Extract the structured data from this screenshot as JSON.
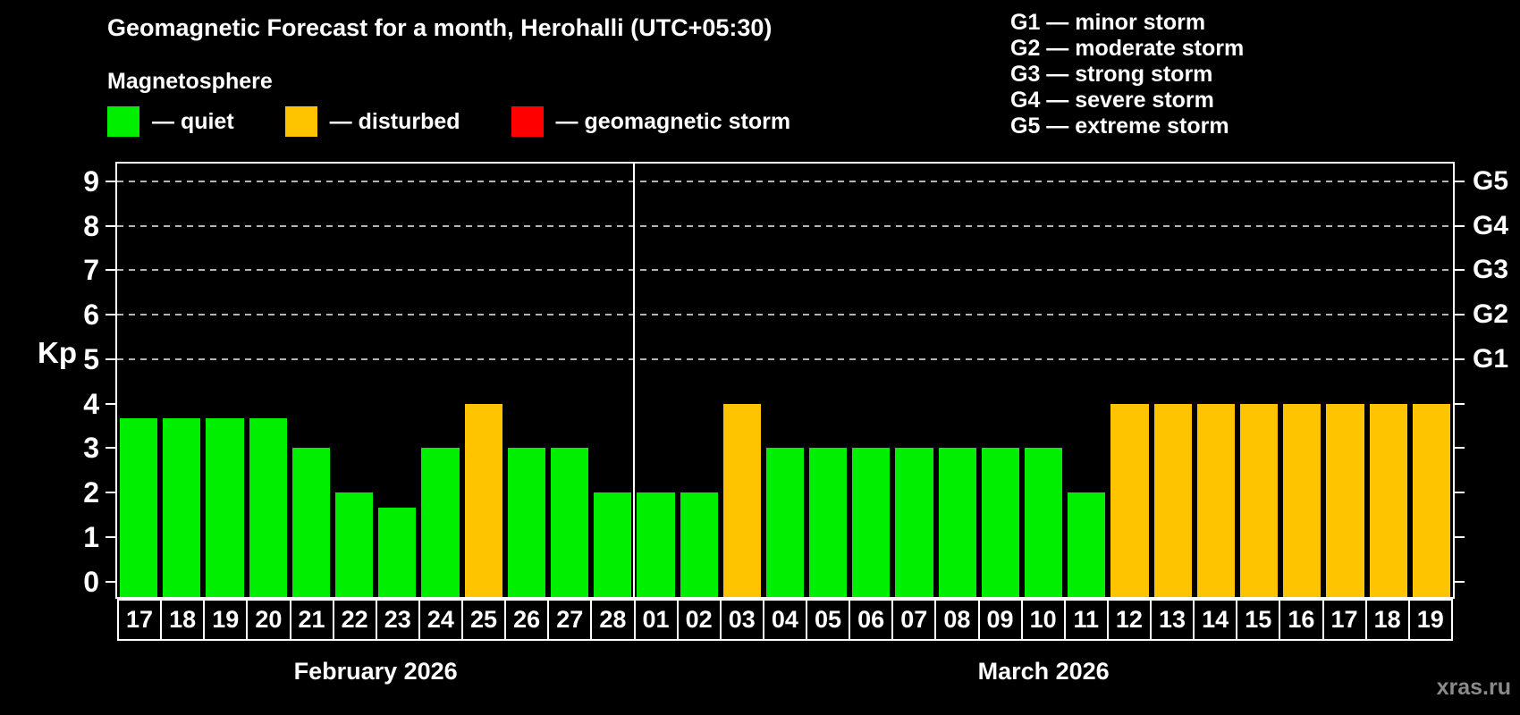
{
  "header": {
    "title": "Geomagnetic Forecast for a month, Herohalli (UTC+05:30)",
    "subtitle": "Magnetosphere"
  },
  "legend": {
    "quiet": "— quiet",
    "disturbed": "— disturbed",
    "storm": "— geomagnetic storm"
  },
  "g_scale_legend": [
    "G1 — minor storm",
    "G2 — moderate storm",
    "G3 — strong storm",
    "G4 — severe storm",
    "G5 — extreme storm"
  ],
  "watermark": "xras.ru",
  "colors": {
    "quiet": "#00EE00",
    "disturbed": "#FFC400",
    "storm": "#FF0000",
    "axis": "#FFFFFF",
    "grid": "#B4B4B4"
  },
  "chart_data": {
    "type": "bar",
    "title": "Geomagnetic Forecast for a month, Herohalli (UTC+05:30)",
    "xlabel": "",
    "ylabel": "Kp",
    "ylim": [
      -0.35,
      9.4
    ],
    "yticks": [
      0,
      1,
      2,
      3,
      4,
      5,
      6,
      7,
      8,
      9
    ],
    "gridlines_at": [
      5,
      6,
      7,
      8,
      9
    ],
    "grid": true,
    "right_axis": [
      {
        "kp": 5,
        "label": "G1"
      },
      {
        "kp": 6,
        "label": "G2"
      },
      {
        "kp": 7,
        "label": "G3"
      },
      {
        "kp": 8,
        "label": "G4"
      },
      {
        "kp": 9,
        "label": "G5"
      }
    ],
    "sections": [
      {
        "label": "February 2026",
        "days": [
          {
            "day": "17",
            "kp": 3.67,
            "status": "quiet"
          },
          {
            "day": "18",
            "kp": 3.67,
            "status": "quiet"
          },
          {
            "day": "19",
            "kp": 3.67,
            "status": "quiet"
          },
          {
            "day": "20",
            "kp": 3.67,
            "status": "quiet"
          },
          {
            "day": "21",
            "kp": 3,
            "status": "quiet"
          },
          {
            "day": "22",
            "kp": 2,
            "status": "quiet"
          },
          {
            "day": "23",
            "kp": 1.67,
            "status": "quiet"
          },
          {
            "day": "24",
            "kp": 3,
            "status": "quiet"
          },
          {
            "day": "25",
            "kp": 4,
            "status": "disturbed"
          },
          {
            "day": "26",
            "kp": 3,
            "status": "quiet"
          },
          {
            "day": "27",
            "kp": 3,
            "status": "quiet"
          },
          {
            "day": "28",
            "kp": 2,
            "status": "quiet"
          }
        ]
      },
      {
        "label": "March 2026",
        "days": [
          {
            "day": "01",
            "kp": 2,
            "status": "quiet"
          },
          {
            "day": "02",
            "kp": 2,
            "status": "quiet"
          },
          {
            "day": "03",
            "kp": 4,
            "status": "disturbed"
          },
          {
            "day": "04",
            "kp": 3,
            "status": "quiet"
          },
          {
            "day": "05",
            "kp": 3,
            "status": "quiet"
          },
          {
            "day": "06",
            "kp": 3,
            "status": "quiet"
          },
          {
            "day": "07",
            "kp": 3,
            "status": "quiet"
          },
          {
            "day": "08",
            "kp": 3,
            "status": "quiet"
          },
          {
            "day": "09",
            "kp": 3,
            "status": "quiet"
          },
          {
            "day": "10",
            "kp": 3,
            "status": "quiet"
          },
          {
            "day": "11",
            "kp": 2,
            "status": "quiet"
          },
          {
            "day": "12",
            "kp": 4,
            "status": "disturbed"
          },
          {
            "day": "13",
            "kp": 4,
            "status": "disturbed"
          },
          {
            "day": "14",
            "kp": 4,
            "status": "disturbed"
          },
          {
            "day": "15",
            "kp": 4,
            "status": "disturbed"
          },
          {
            "day": "16",
            "kp": 4,
            "status": "disturbed"
          },
          {
            "day": "17",
            "kp": 4,
            "status": "disturbed"
          },
          {
            "day": "18",
            "kp": 4,
            "status": "disturbed"
          },
          {
            "day": "19",
            "kp": 4,
            "status": "disturbed"
          }
        ]
      }
    ]
  }
}
